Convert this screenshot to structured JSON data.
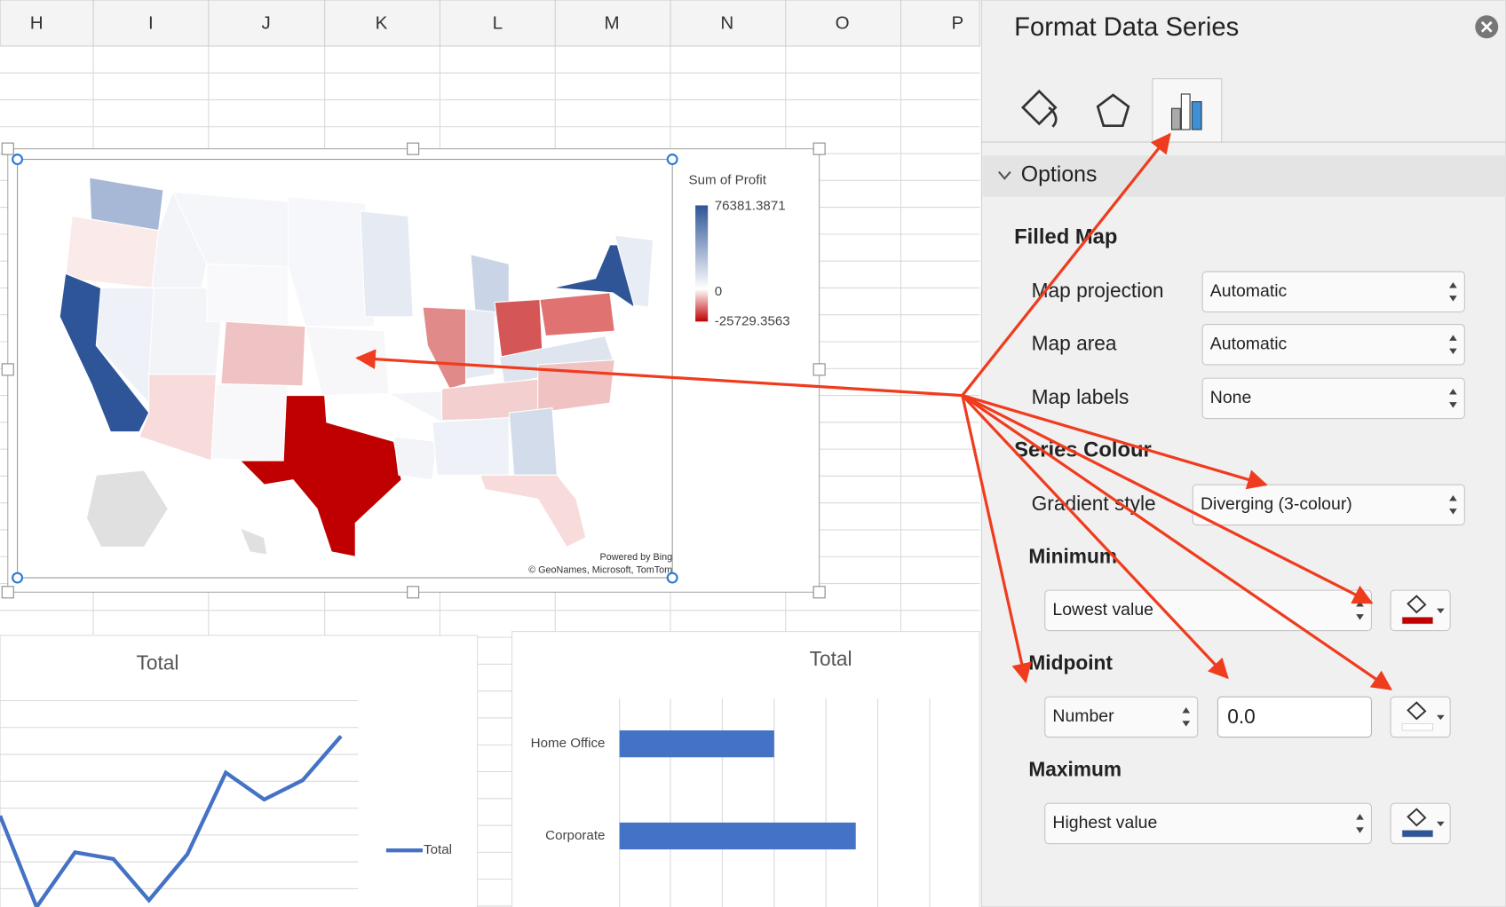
{
  "sheet": {
    "columns": [
      "H",
      "I",
      "J",
      "K",
      "L",
      "M",
      "N",
      "O",
      "P"
    ]
  },
  "map_chart": {
    "legend_title": "Sum of Profit",
    "legend_max": "76381.3871",
    "legend_mid": "0",
    "legend_min": "-25729.3563",
    "credit_1": "Powered by Bing",
    "credit_2": "© GeoNames, Microsoft, TomTom"
  },
  "line_chart": {
    "title": "Total",
    "legend": "Total"
  },
  "bar_chart": {
    "title": "Total",
    "categories": [
      "Home Office",
      "Corporate"
    ]
  },
  "panel": {
    "title": "Format Data Series",
    "section": "Options",
    "filled_map": {
      "heading": "Filled Map",
      "rows": [
        {
          "label": "Map projection",
          "value": "Automatic"
        },
        {
          "label": "Map area",
          "value": "Automatic"
        },
        {
          "label": "Map labels",
          "value": "None"
        }
      ]
    },
    "series_colour": {
      "heading": "Series Colour",
      "gradient_label": "Gradient style",
      "gradient_value": "Diverging (3-colour)",
      "minimum": {
        "heading": "Minimum",
        "type": "Lowest value"
      },
      "midpoint": {
        "heading": "Midpoint",
        "type": "Number",
        "value": "0.0"
      },
      "maximum": {
        "heading": "Maximum",
        "type": "Highest value"
      }
    }
  }
}
